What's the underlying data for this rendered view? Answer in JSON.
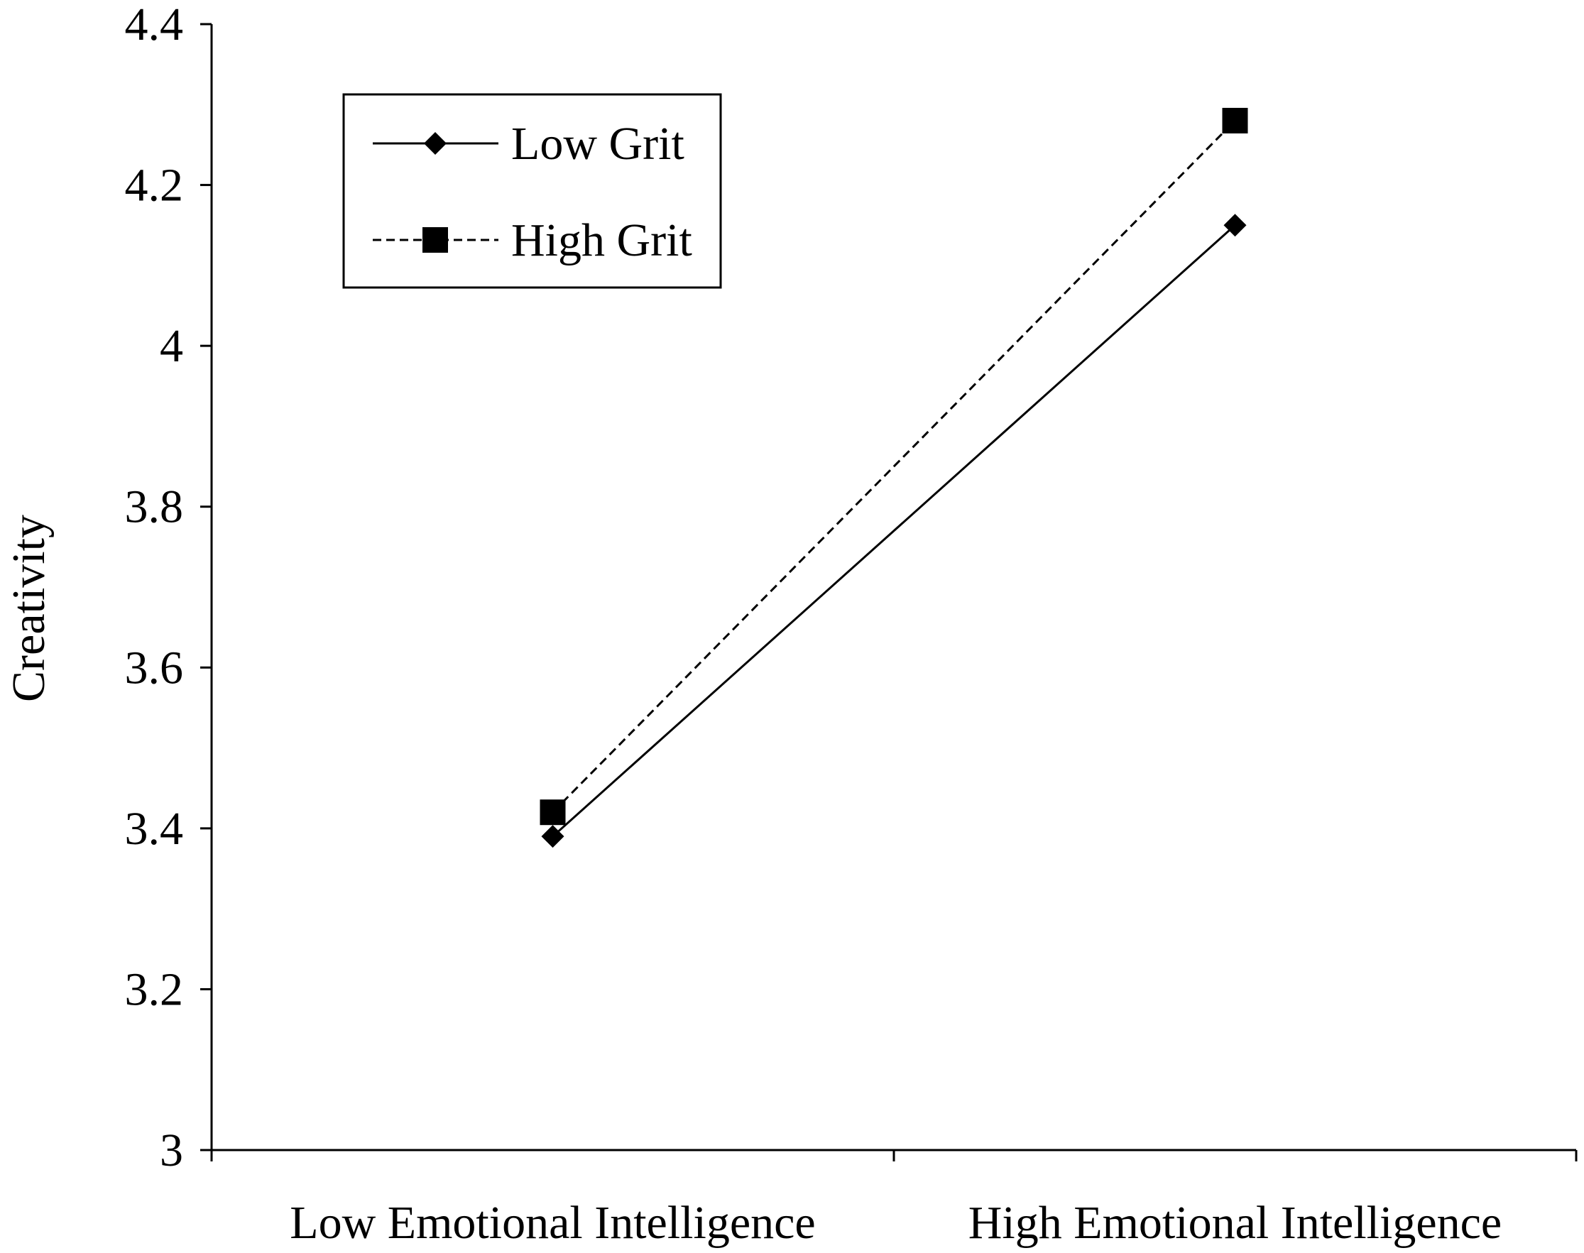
{
  "chart_data": {
    "type": "line",
    "title": "",
    "xlabel": "",
    "ylabel": "Creativity",
    "categories": [
      "Low Emotional Intelligence",
      "High Emotional Intelligence"
    ],
    "ylim": [
      3,
      4.4
    ],
    "yticks": [
      "3",
      "3.2",
      "3.4",
      "3.6",
      "3.8",
      "4",
      "4.2",
      "4.4"
    ],
    "yticks_values": [
      3,
      3.2,
      3.4,
      3.6,
      3.8,
      4,
      4.2,
      4.4
    ],
    "grid": false,
    "legend_position": "top-left",
    "series": [
      {
        "name": "Low Grit",
        "values": [
          3.39,
          4.15
        ],
        "line_style": "solid",
        "marker": "diamond",
        "color": "#000000"
      },
      {
        "name": "High Grit",
        "values": [
          3.42,
          4.28
        ],
        "line_style": "dashed",
        "marker": "square",
        "color": "#000000"
      }
    ]
  }
}
